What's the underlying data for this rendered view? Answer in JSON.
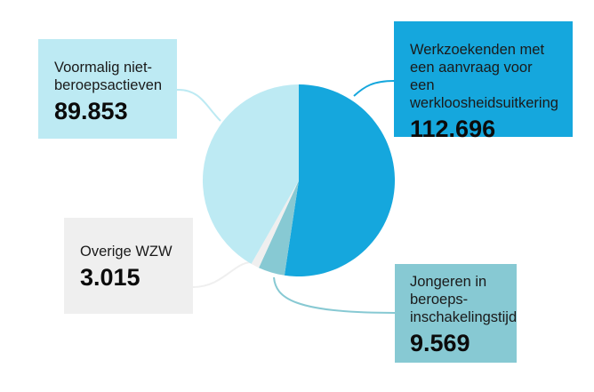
{
  "chart_data": {
    "type": "pie",
    "title": "",
    "total": 215133,
    "slices": [
      {
        "key": "wz",
        "label": "Werkzoekenden met een aanvraag voor een werkloosheidsuitkering",
        "value": 112696,
        "display": "112.696",
        "color": "#15A7DD"
      },
      {
        "key": "jb",
        "label": "Jongeren in beroepsinschakelingstijd",
        "value": 9569,
        "display": "9.569",
        "color": "#87C9D3"
      },
      {
        "key": "ow",
        "label": "Overige WZW",
        "value": 3015,
        "display": "3.015",
        "color": "#EFEFEF"
      },
      {
        "key": "vnb",
        "label": "Voormalig niet-beroepsactieven",
        "value": 89853,
        "display": "89.853",
        "color": "#BDEAF3"
      }
    ],
    "start_angle_deg": 0,
    "direction": "clockwise",
    "legend": "callout-boxes"
  },
  "callouts": {
    "vnb": {
      "label_lines": [
        "Voormalig niet-",
        "beroepsactieven"
      ],
      "value": "89.853"
    },
    "wz": {
      "label_lines": [
        "Werkzoekenden met",
        "een aanvraag voor een",
        "werkloosheidsuitkering"
      ],
      "value": "112.696"
    },
    "ow": {
      "label_lines": [
        "Overige WZW"
      ],
      "value": "3.015"
    },
    "jb": {
      "label_lines": [
        "Jongeren in",
        "beroeps-",
        "inschakelingstijd"
      ],
      "value": "9.569"
    }
  },
  "colors": {
    "wz": "#15A7DD",
    "jb": "#87C9D3",
    "ow": "#EFEFEF",
    "vnb": "#BDEAF3",
    "background": "#FFFFFF"
  }
}
